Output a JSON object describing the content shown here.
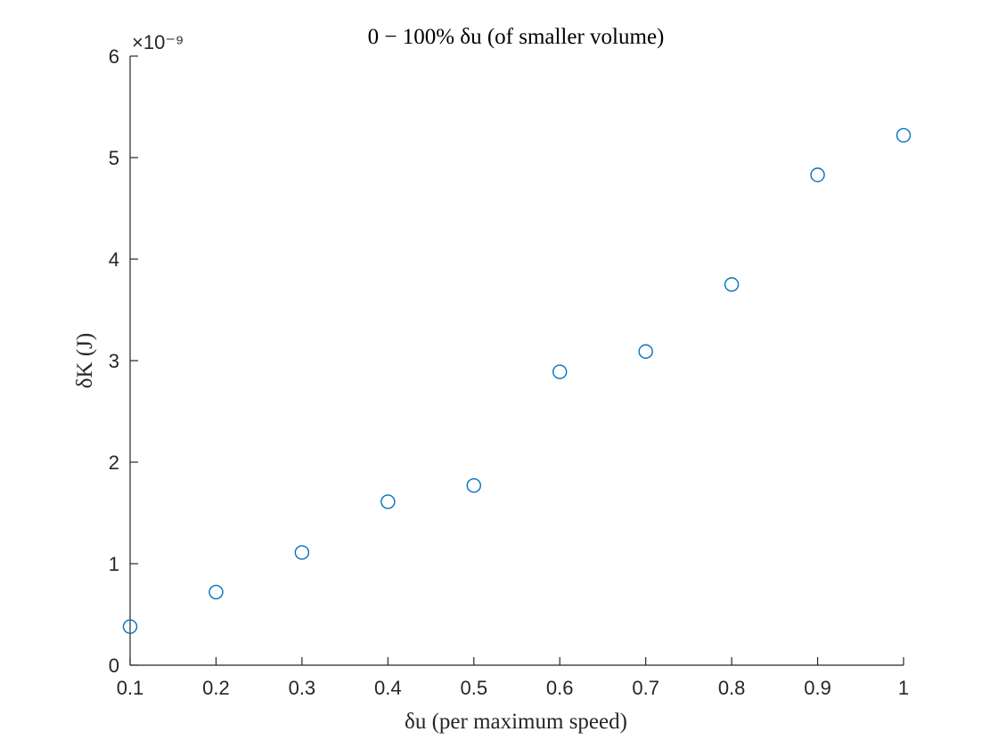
{
  "chart_data": {
    "type": "scatter",
    "title": "0 − 100% δu (of smaller volume)",
    "xlabel": "δu (per maximum speed)",
    "ylabel": "δK (J)",
    "y_exponent": "×10⁻⁹",
    "xlim": [
      0.1,
      1
    ],
    "ylim": [
      0,
      6
    ],
    "xticks": [
      "0.1",
      "0.2",
      "0.3",
      "0.4",
      "0.5",
      "0.6",
      "0.7",
      "0.8",
      "0.9",
      "1"
    ],
    "yticks": [
      "0",
      "1",
      "2",
      "3",
      "4",
      "5",
      "6"
    ],
    "grid": false,
    "marker": "circle-open",
    "marker_color": "#0072BD",
    "series": [
      {
        "x": [
          0.1,
          0.2,
          0.3,
          0.4,
          0.5,
          0.6,
          0.7,
          0.8,
          0.9,
          1.0
        ],
        "y": [
          0.38,
          0.72,
          1.11,
          1.61,
          1.77,
          2.89,
          3.09,
          3.75,
          4.83,
          5.22
        ]
      }
    ]
  }
}
